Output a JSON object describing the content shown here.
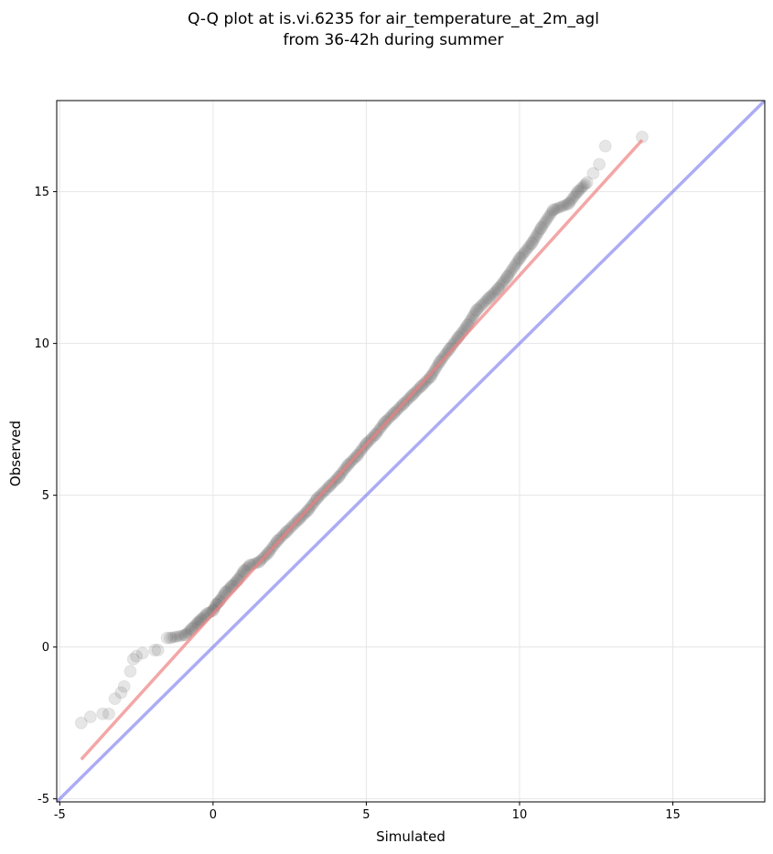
{
  "chart_data": {
    "type": "scatter",
    "title": "Q-Q plot at is.vi.6235 for air_temperature_at_2m_agl",
    "subtitle": "from 36-42h during summer",
    "xlabel": "Simulated",
    "ylabel": "Observed",
    "xlim": [
      -5.1,
      18
    ],
    "ylim": [
      -5.1,
      18
    ],
    "x_ticks": [
      -5,
      0,
      5,
      10,
      15
    ],
    "y_ticks": [
      -5,
      0,
      5,
      10,
      15
    ],
    "grid": true,
    "colors": {
      "points": "#333333",
      "fit_line": "#f08080",
      "identity_line": "#8080f0",
      "grid": "#e6e6e6",
      "axes": "#000000"
    },
    "identity_line": {
      "x": [
        -5.1,
        18
      ],
      "y": [
        -5.1,
        18
      ]
    },
    "fit_line": {
      "x": [
        -4.3,
        14.0
      ],
      "y": [
        -3.7,
        16.7
      ]
    },
    "points": {
      "x": [
        -4.3,
        -4.0,
        -3.6,
        -3.4,
        -3.2,
        -3.0,
        -2.9,
        -2.7,
        -2.6,
        -2.5,
        -2.3,
        -1.9,
        -1.8,
        -1.5,
        -1.4,
        -0.9,
        -0.7,
        -0.5,
        -0.4,
        -0.2,
        0.0,
        0.1,
        0.2,
        0.4,
        0.6,
        0.8,
        1.0,
        1.2,
        1.5,
        1.8,
        2.1,
        2.4,
        2.8,
        3.1,
        3.4,
        3.8,
        4.1,
        4.4,
        4.7,
        5.0,
        5.3,
        5.6,
        5.9,
        6.2,
        6.5,
        6.8,
        7.1,
        7.4,
        7.7,
        8.0,
        8.3,
        8.6,
        9.0,
        9.3,
        9.6,
        10.0,
        10.4,
        10.7,
        11.1,
        11.6,
        11.9,
        12.2,
        12.4,
        12.6,
        12.8,
        14.0
      ],
      "y": [
        -2.5,
        -2.3,
        -2.2,
        -2.2,
        -1.7,
        -1.5,
        -1.3,
        -0.8,
        -0.4,
        -0.3,
        -0.2,
        -0.1,
        -0.1,
        0.3,
        0.3,
        0.4,
        0.6,
        0.8,
        0.9,
        1.1,
        1.2,
        1.4,
        1.5,
        1.8,
        2.0,
        2.2,
        2.5,
        2.7,
        2.8,
        3.1,
        3.5,
        3.8,
        4.2,
        4.5,
        4.9,
        5.3,
        5.6,
        6.0,
        6.3,
        6.7,
        7.0,
        7.4,
        7.7,
        8.0,
        8.3,
        8.6,
        8.9,
        9.4,
        9.8,
        10.2,
        10.6,
        11.1,
        11.5,
        11.8,
        12.2,
        12.8,
        13.3,
        13.8,
        14.4,
        14.6,
        15.0,
        15.3,
        15.6,
        15.9,
        16.5,
        16.8
      ]
    }
  }
}
